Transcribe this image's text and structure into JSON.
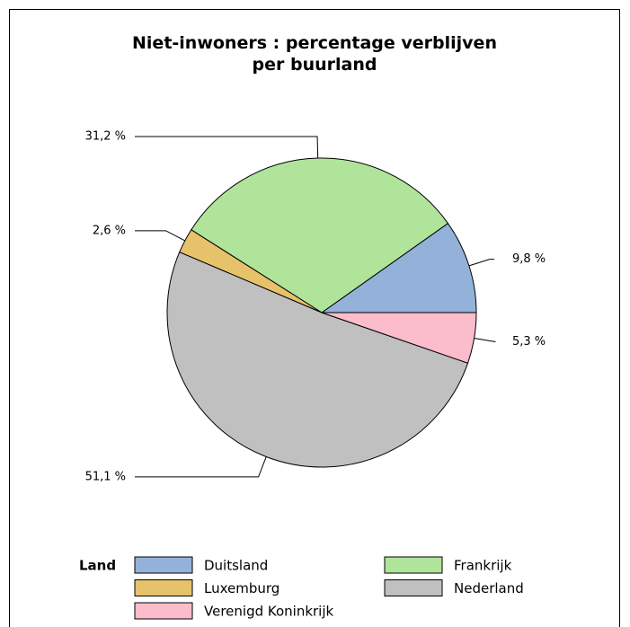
{
  "chart_data": {
    "type": "pie",
    "title": "Niet-inwoners : percentage verblijven per buurland",
    "legend_title": "Land",
    "categories": [
      "Duitsland",
      "Frankrijk",
      "Luxemburg",
      "Nederland",
      "Verenigd Koninkrijk"
    ],
    "values": [
      9.8,
      31.2,
      2.6,
      51.1,
      5.3
    ],
    "value_labels": [
      "9,8 %",
      "31,2 %",
      "2,6 %",
      "51,1 %",
      "5,3 %"
    ],
    "colors": [
      "#94b1d9",
      "#b0e49a",
      "#e6c36a",
      "#c0c0c0",
      "#fbbccb"
    ]
  }
}
